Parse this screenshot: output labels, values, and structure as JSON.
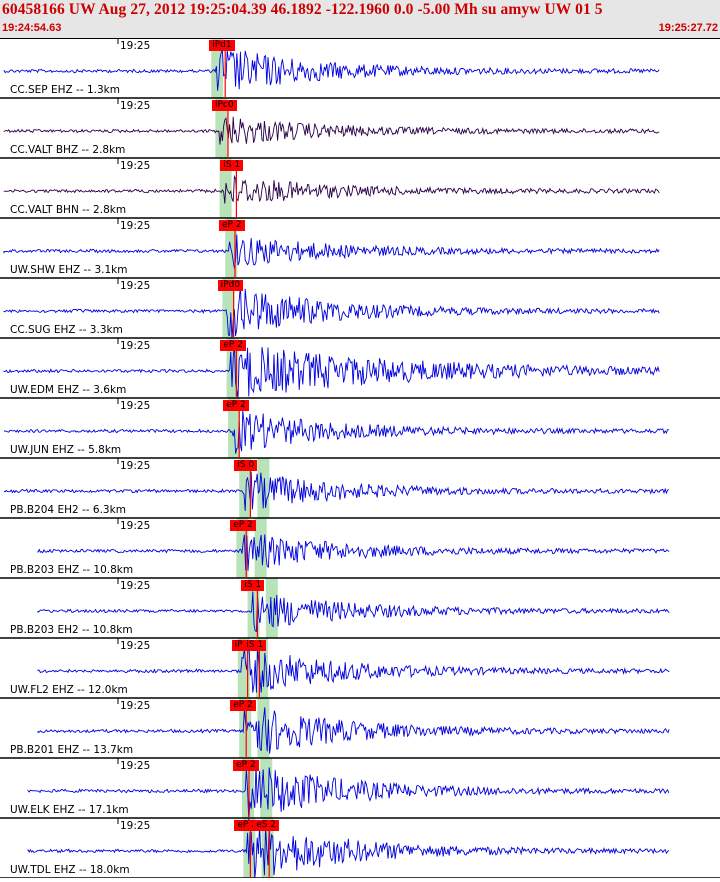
{
  "header": {
    "title": "60458166 UW Aug 27, 2012 19:25:04.39   46.1892 -122.1960  0.0 -5.00 Mh su amyw UW 01   5",
    "time_start": "19:24:54.63",
    "time_end": "19:25:27.72"
  },
  "colors": {
    "trace": "#0000dd",
    "trace_dark": "#2a004a",
    "pick": "#ff0000",
    "window": "#b8e2b8",
    "header_text": "#cc0000"
  },
  "tick_label": "19:25",
  "panels": [
    {
      "station": "CC.SEP EHZ -- 1.3km",
      "pick": "iPd1",
      "pick_time": 1.8,
      "amp": 26,
      "onset": 1.8,
      "dark": false
    },
    {
      "station": "CC.VALT BHZ -- 2.8km",
      "pick": "iPc0",
      "pick_time": 2.0,
      "amp": 16,
      "onset": 2.1,
      "dark": true
    },
    {
      "station": "CC.VALT BHN -- 2.8km",
      "pick": "iS 1",
      "pick_time": 2.6,
      "amp": 16,
      "onset": 2.4,
      "dark": true
    },
    {
      "station": "UW.SHW EHZ -- 3.1km",
      "pick": "eP 2",
      "pick_time": 2.5,
      "amp": 17,
      "onset": 2.8,
      "dark": false
    },
    {
      "station": "CC.SUG EHZ -- 3.3km",
      "pick": "iPd0",
      "pick_time": 2.4,
      "amp": 28,
      "onset": 2.6,
      "dark": false
    },
    {
      "station": "UW.EDM EHZ -- 3.6km",
      "pick": "eP 2",
      "pick_time": 2.6,
      "amp": 28,
      "onset": 2.9,
      "dark": false
    },
    {
      "station": "UW.JUN EHZ -- 5.8km",
      "pick": "eP 2",
      "pick_time": 2.8,
      "amp": 22,
      "onset": 3.0,
      "dark": false
    },
    {
      "station": "PB.B204 EH2 -- 6.3km",
      "pick": "iS 0",
      "pick_time": 3.6,
      "amp": 20,
      "onset": 3.8,
      "dark": false
    },
    {
      "station": "PB.B203 EHZ -- 10.8km",
      "pick": "eP 2",
      "pick_time": 3.3,
      "amp": 20,
      "onset": 3.6,
      "dark": false
    },
    {
      "station": "PB.B203 EH2 -- 10.8km",
      "pick": "iS 1",
      "pick_time": 4.1,
      "amp": 20,
      "onset": 4.4,
      "dark": false
    },
    {
      "station": "UW.FL2 EHZ -- 12.0km",
      "pick": "iPd0",
      "pick_time": 3.4,
      "pick2": "iS 1",
      "pick2_time": 4.1,
      "amp": 25,
      "onset": 3.7,
      "dark": false
    },
    {
      "station": "PB.B201 EHZ -- 13.7km",
      "pick": "eP 2",
      "pick_time": 3.3,
      "amp": 28,
      "onset": 3.8,
      "dark": false
    },
    {
      "station": "UW.ELK EHZ -- 17.1km",
      "pick": "eP 2",
      "pick_time": 3.5,
      "amp": 30,
      "onset": 4.0,
      "dark": false
    },
    {
      "station": "UW.TDL EHZ -- 18.0km",
      "pick": "eP 2",
      "pick_time": 3.6,
      "pick2": "eS 2",
      "pick2_time": 4.8,
      "amp": 32,
      "onset": 4.1,
      "dark": false
    }
  ]
}
